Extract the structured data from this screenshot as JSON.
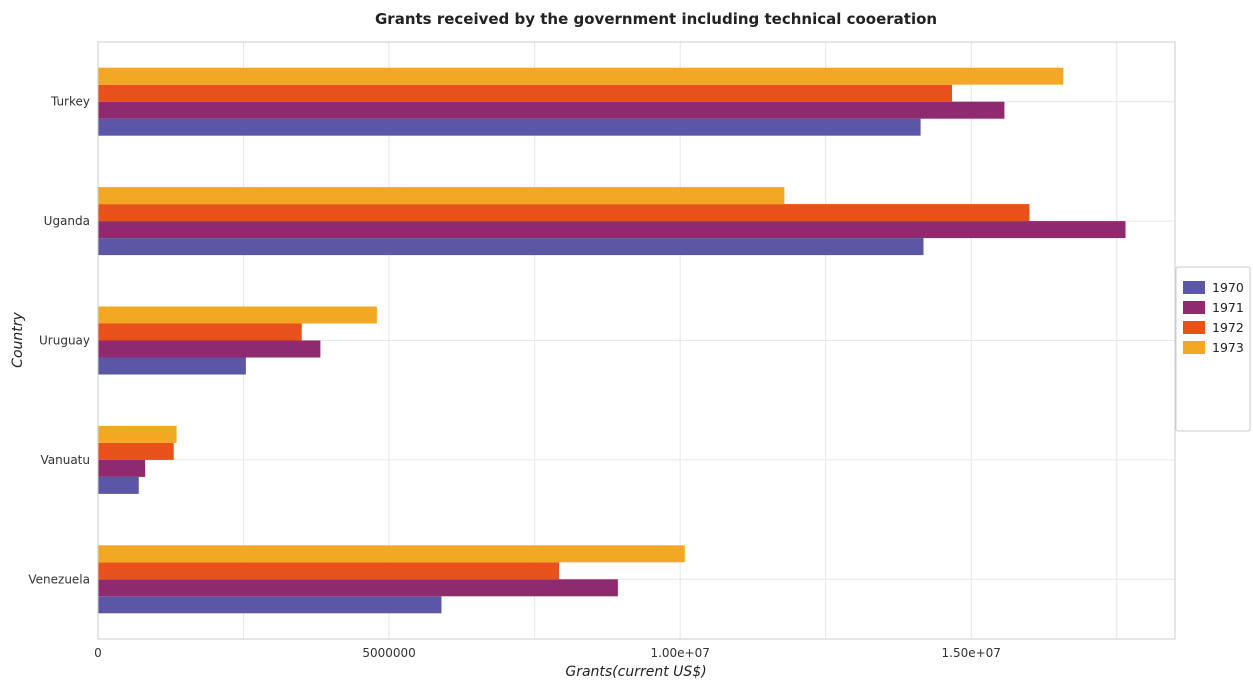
{
  "chart_data": {
    "type": "bar",
    "orientation": "horizontal",
    "title": "Grants received by the government including technical cooeration",
    "xlabel": "Grants(current US$)",
    "ylabel": "Country",
    "categories": [
      "Turkey",
      "Uganda",
      "Uruguay",
      "Vanuatu",
      "Venezuela"
    ],
    "xlim": [
      0,
      18500000
    ],
    "xticks": [
      0,
      5000000,
      10000000,
      15000000
    ],
    "xtick_labels": [
      "0",
      "5000000",
      "1.00e+07",
      "1.50e+07"
    ],
    "grid": true,
    "legend_position": "right",
    "series": [
      {
        "name": "1970",
        "color": "#5b57a6",
        "values": [
          14130000,
          14180000,
          2540000,
          700000,
          5900000
        ]
      },
      {
        "name": "1971",
        "color": "#8f2a6e",
        "values": [
          15570000,
          17650000,
          3820000,
          810000,
          8930000
        ]
      },
      {
        "name": "1972",
        "color": "#e8511a",
        "values": [
          14670000,
          16000000,
          3500000,
          1300000,
          7920000
        ]
      },
      {
        "name": "1973",
        "color": "#f2a823",
        "values": [
          16580000,
          11790000,
          4790000,
          1350000,
          10080000
        ]
      }
    ]
  }
}
